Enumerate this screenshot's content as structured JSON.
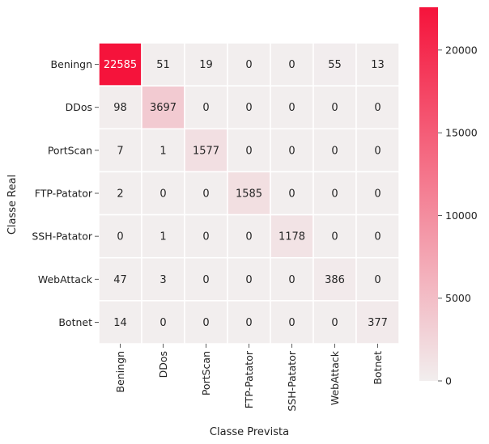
{
  "chart_data": {
    "type": "heatmap",
    "title": "",
    "xlabel": "Classe Prevista",
    "ylabel": "Classe Real",
    "x_categories": [
      "Beningn",
      "DDos",
      "PortScan",
      "FTP-Patator",
      "SSH-Patator",
      "WebAttack",
      "Botnet"
    ],
    "y_categories": [
      "Beningn",
      "DDos",
      "PortScan",
      "FTP-Patator",
      "SSH-Patator",
      "WebAttack",
      "Botnet"
    ],
    "values": [
      [
        22585,
        51,
        19,
        0,
        0,
        55,
        13
      ],
      [
        98,
        3697,
        0,
        0,
        0,
        0,
        0
      ],
      [
        7,
        1,
        1577,
        0,
        0,
        0,
        0
      ],
      [
        2,
        0,
        0,
        1585,
        0,
        0,
        0
      ],
      [
        0,
        1,
        0,
        0,
        1178,
        0,
        0
      ],
      [
        47,
        3,
        0,
        0,
        0,
        386,
        0
      ],
      [
        14,
        0,
        0,
        0,
        0,
        0,
        377
      ]
    ],
    "colorbar": {
      "range": [
        0,
        22585
      ],
      "ticks": [
        0,
        5000,
        10000,
        15000,
        20000
      ],
      "color_low": "#f2eeee",
      "color_high": "#f5133b"
    },
    "grid": false,
    "cell_separator_color": "#ffffff"
  }
}
